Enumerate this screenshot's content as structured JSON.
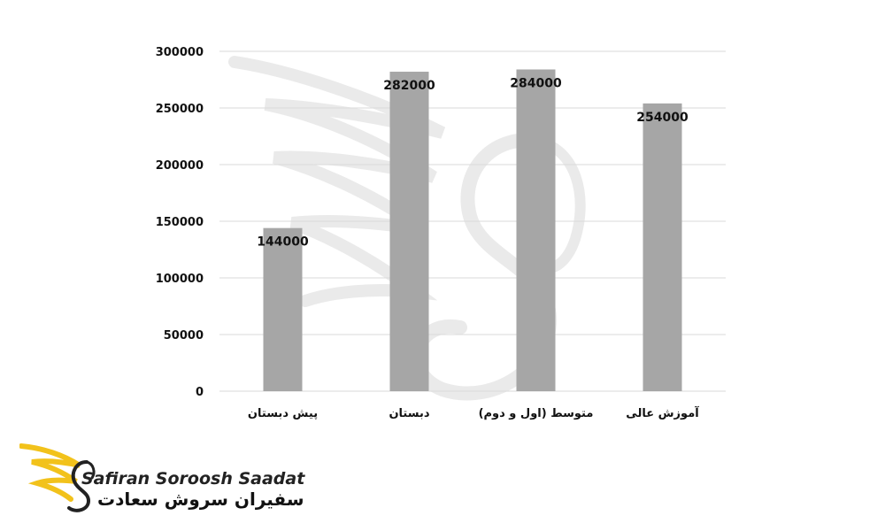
{
  "chart_data": {
    "type": "bar",
    "categories": [
      "پیش دبستان",
      "دبستان",
      "متوسط (اول و دوم)",
      "آموزش عالی"
    ],
    "values": [
      144000,
      282000,
      284000,
      254000
    ],
    "data_labels": [
      "144000",
      "282000",
      "284000",
      "254000"
    ],
    "ylim": [
      0,
      300000
    ],
    "y_ticks": [
      "0",
      "50000",
      "100000",
      "150000",
      "200000",
      "250000",
      "300000"
    ],
    "grid": true,
    "bar_color": "#a6a6a6",
    "grid_color": "#d9d9d9"
  },
  "branding": {
    "name_en": "Safiran Soroosh Saadat",
    "name_fa": "سفیران سروش سعادت",
    "accent_color": "#f2c21b"
  }
}
